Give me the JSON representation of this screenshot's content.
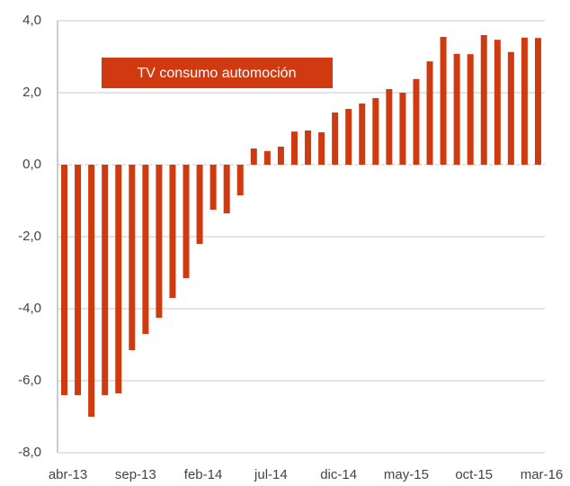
{
  "chart_data": {
    "type": "bar",
    "legend": "TV consumo automoción",
    "categories": [
      "abr-13",
      null,
      null,
      null,
      null,
      "sep-13",
      null,
      null,
      null,
      null,
      "feb-14",
      null,
      null,
      null,
      null,
      "jul-14",
      null,
      null,
      null,
      null,
      "dic-14",
      null,
      null,
      null,
      null,
      "may-15",
      null,
      null,
      null,
      null,
      "oct-15",
      null,
      null,
      null,
      null,
      "mar-16"
    ],
    "values": [
      -6.4,
      -6.4,
      -7.0,
      -6.4,
      -6.35,
      -5.15,
      -4.7,
      -4.25,
      -3.7,
      -3.15,
      -2.2,
      -1.25,
      -1.35,
      -0.85,
      0.45,
      0.38,
      0.5,
      0.92,
      0.95,
      0.9,
      1.45,
      1.55,
      1.7,
      1.85,
      2.1,
      2.0,
      2.38,
      2.87,
      3.55,
      3.08,
      3.07,
      3.6,
      3.47,
      3.13,
      3.53,
      3.52
    ],
    "color": "#d03a10",
    "ylim": [
      -8,
      4
    ],
    "yticks": [
      {
        "value": -8,
        "label": "-8,0"
      },
      {
        "value": -6,
        "label": "-6,0"
      },
      {
        "value": -4,
        "label": "-4,0"
      },
      {
        "value": -2,
        "label": "-2,0"
      },
      {
        "value": 0,
        "label": "0,0"
      },
      {
        "value": 2,
        "label": "2,0"
      },
      {
        "value": 4,
        "label": "4,0"
      }
    ],
    "grid": true
  }
}
